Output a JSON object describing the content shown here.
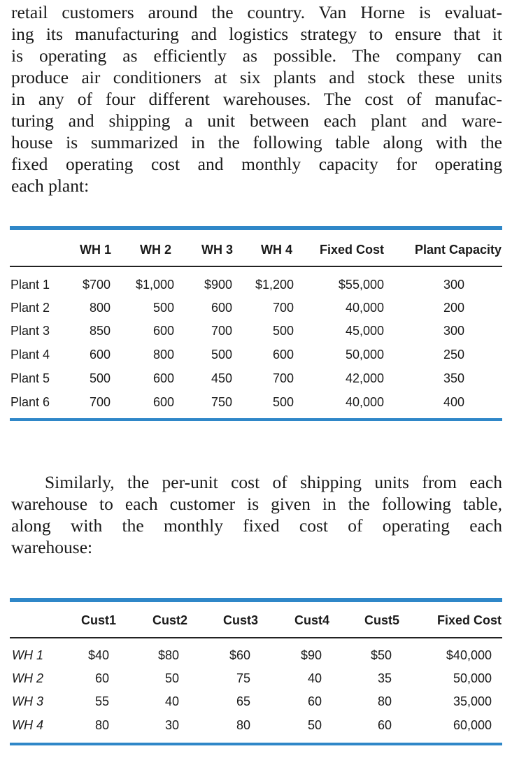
{
  "paragraph1": [
    "retail customers around the country. Van Horne is evaluat-",
    "ing its manufacturing and logistics strategy to ensure that it",
    "is operating as efficiently as possible. The company can",
    "produce air conditioners at six plants and stock these units",
    "in any of four different warehouses. The cost of manufac-",
    "turing and shipping a unit between each plant and ware-",
    "house is summarized in the following table along with the",
    "fixed operating cost and monthly capacity for operating",
    "each plant:"
  ],
  "table1": {
    "headers": [
      "WH 1",
      "WH 2",
      "WH 3",
      "WH 4",
      "Fixed Cost",
      "Plant Capacity"
    ],
    "rows": [
      {
        "label": "Plant 1",
        "values": [
          "$700",
          "$1,000",
          "$900",
          "$1,200",
          "$55,000",
          "300"
        ]
      },
      {
        "label": "Plant 2",
        "values": [
          "800",
          "500",
          "600",
          "700",
          "40,000",
          "200"
        ]
      },
      {
        "label": "Plant 3",
        "values": [
          "850",
          "600",
          "700",
          "500",
          "45,000",
          "300"
        ]
      },
      {
        "label": "Plant 4",
        "values": [
          "600",
          "800",
          "500",
          "600",
          "50,000",
          "250"
        ]
      },
      {
        "label": "Plant 5",
        "values": [
          "500",
          "600",
          "450",
          "700",
          "42,000",
          "350"
        ]
      },
      {
        "label": "Plant 6",
        "values": [
          "700",
          "600",
          "750",
          "500",
          "40,000",
          "400"
        ]
      }
    ]
  },
  "paragraph2": [
    "Similarly, the per-unit cost of shipping units from each",
    "warehouse to each customer is given in the following table,",
    "along with the monthly fixed cost of operating each",
    "warehouse:"
  ],
  "table2": {
    "headers": [
      "Cust1",
      "Cust2",
      "Cust3",
      "Cust4",
      "Cust5",
      "Fixed Cost"
    ],
    "rows": [
      {
        "label": "WH 1",
        "values": [
          "$40",
          "$80",
          "$60",
          "$90",
          "$50",
          "$40,000"
        ]
      },
      {
        "label": "WH 2",
        "values": [
          "60",
          "50",
          "75",
          "40",
          "35",
          "50,000"
        ]
      },
      {
        "label": "WH 3",
        "values": [
          "55",
          "40",
          "65",
          "60",
          "80",
          "35,000"
        ]
      },
      {
        "label": "WH 4",
        "values": [
          "80",
          "30",
          "80",
          "50",
          "60",
          "60,000"
        ]
      }
    ]
  }
}
